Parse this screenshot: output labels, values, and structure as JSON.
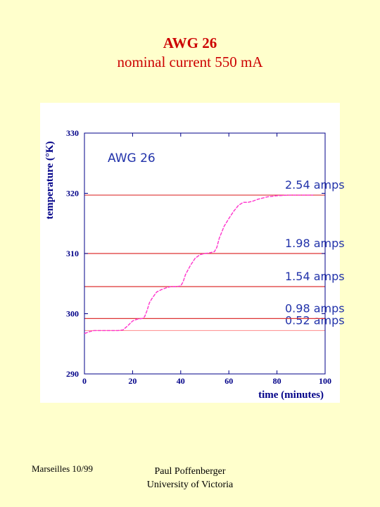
{
  "slide": {
    "title": "AWG 26",
    "subtitle": "nominal current 550 mA",
    "footer_left": "Marseilles 10/99",
    "footer_author": "Paul Poffenberger",
    "footer_affiliation": "University of Victoria"
  },
  "chart_data": {
    "type": "line",
    "title": "AWG 26",
    "xlabel": "time (minutes)",
    "ylabel": "temperature (°K)",
    "xlim": [
      0,
      100
    ],
    "ylim": [
      290,
      330
    ],
    "xticks": [
      0,
      20,
      40,
      60,
      80,
      100
    ],
    "yticks": [
      290,
      300,
      310,
      320,
      330
    ],
    "grid": false,
    "series": [
      {
        "color": "#ff33cc",
        "x": [
          0,
          2,
          4,
          10,
          14,
          16,
          18,
          20,
          22,
          24,
          25,
          26,
          27,
          28,
          30,
          32,
          34,
          36,
          38,
          40,
          41,
          42,
          44,
          46,
          48,
          50,
          52,
          54,
          55,
          56,
          58,
          60,
          62,
          64,
          66,
          68,
          70,
          72,
          74,
          76,
          78,
          80,
          85,
          90,
          95
        ],
        "y": [
          296.7,
          297.0,
          297.2,
          297.2,
          297.2,
          297.3,
          298.0,
          298.8,
          299.1,
          299.2,
          299.5,
          300.5,
          301.8,
          302.5,
          303.6,
          304.0,
          304.3,
          304.5,
          304.5,
          304.6,
          305.3,
          306.5,
          308.0,
          309.2,
          309.8,
          310.0,
          310.1,
          310.3,
          311.0,
          312.5,
          314.5,
          315.8,
          317.0,
          318.0,
          318.5,
          318.5,
          318.7,
          319.0,
          319.2,
          319.4,
          319.5,
          319.6,
          319.7,
          319.7,
          319.7
        ]
      }
    ],
    "reference_lines": [
      {
        "y": 297.2,
        "label": "0.52 amps",
        "color": "#ff9999"
      },
      {
        "y": 299.2,
        "label": "0.98 amps",
        "color": "#dd3333"
      },
      {
        "y": 304.5,
        "label": "1.54 amps",
        "color": "#dd3333"
      },
      {
        "y": 310.0,
        "label": "1.98 amps",
        "color": "#dd3333"
      },
      {
        "y": 319.7,
        "label": "2.54 amps",
        "color": "#dd3333"
      }
    ],
    "colors": {
      "axis_labels": "#000088",
      "annotations": "#2233aa",
      "frame": "#000088"
    }
  }
}
